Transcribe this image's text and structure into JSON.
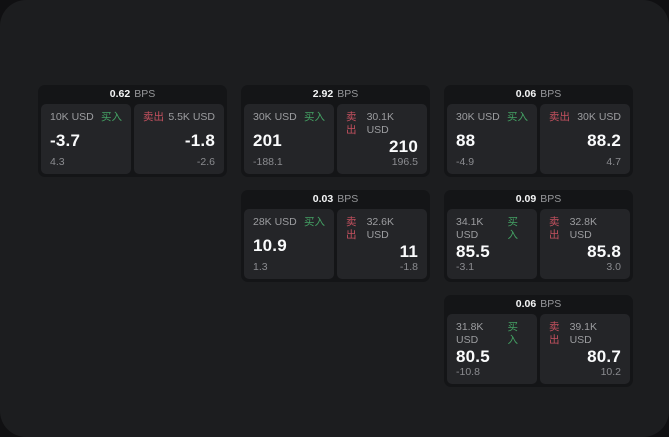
{
  "labels": {
    "buy": "买入",
    "sell": "卖出",
    "bps_unit": "BPS"
  },
  "colors": {
    "buy_green": "#44a264",
    "sell_red": "#c4515f"
  },
  "cards": [
    {
      "bps": "0.62",
      "buy": {
        "amount": "10K USD",
        "value": "-3.7",
        "sub": "4.3"
      },
      "sell": {
        "amount": "5.5K USD",
        "value": "-1.8",
        "sub": "-2.6"
      }
    },
    {
      "bps": "2.92",
      "buy": {
        "amount": "30K USD",
        "value": "201",
        "sub": "-188.1"
      },
      "sell": {
        "amount": "30.1K USD",
        "value": "210",
        "sub": "196.5"
      }
    },
    {
      "bps": "0.06",
      "buy": {
        "amount": "30K USD",
        "value": "88",
        "sub": "-4.9"
      },
      "sell": {
        "amount": "30K USD",
        "value": "88.2",
        "sub": "4.7"
      }
    },
    {
      "bps": "0.03",
      "buy": {
        "amount": "28K USD",
        "value": "10.9",
        "sub": "1.3"
      },
      "sell": {
        "amount": "32.6K USD",
        "value": "11",
        "sub": "-1.8"
      }
    },
    {
      "bps": "0.09",
      "buy": {
        "amount": "34.1K USD",
        "value": "85.5",
        "sub": "-3.1"
      },
      "sell": {
        "amount": "32.8K USD",
        "value": "85.8",
        "sub": "3.0"
      }
    },
    {
      "bps": "0.06",
      "buy": {
        "amount": "31.8K USD",
        "value": "80.5",
        "sub": "-10.8"
      },
      "sell": {
        "amount": "39.1K USD",
        "value": "80.7",
        "sub": "10.2"
      }
    }
  ]
}
